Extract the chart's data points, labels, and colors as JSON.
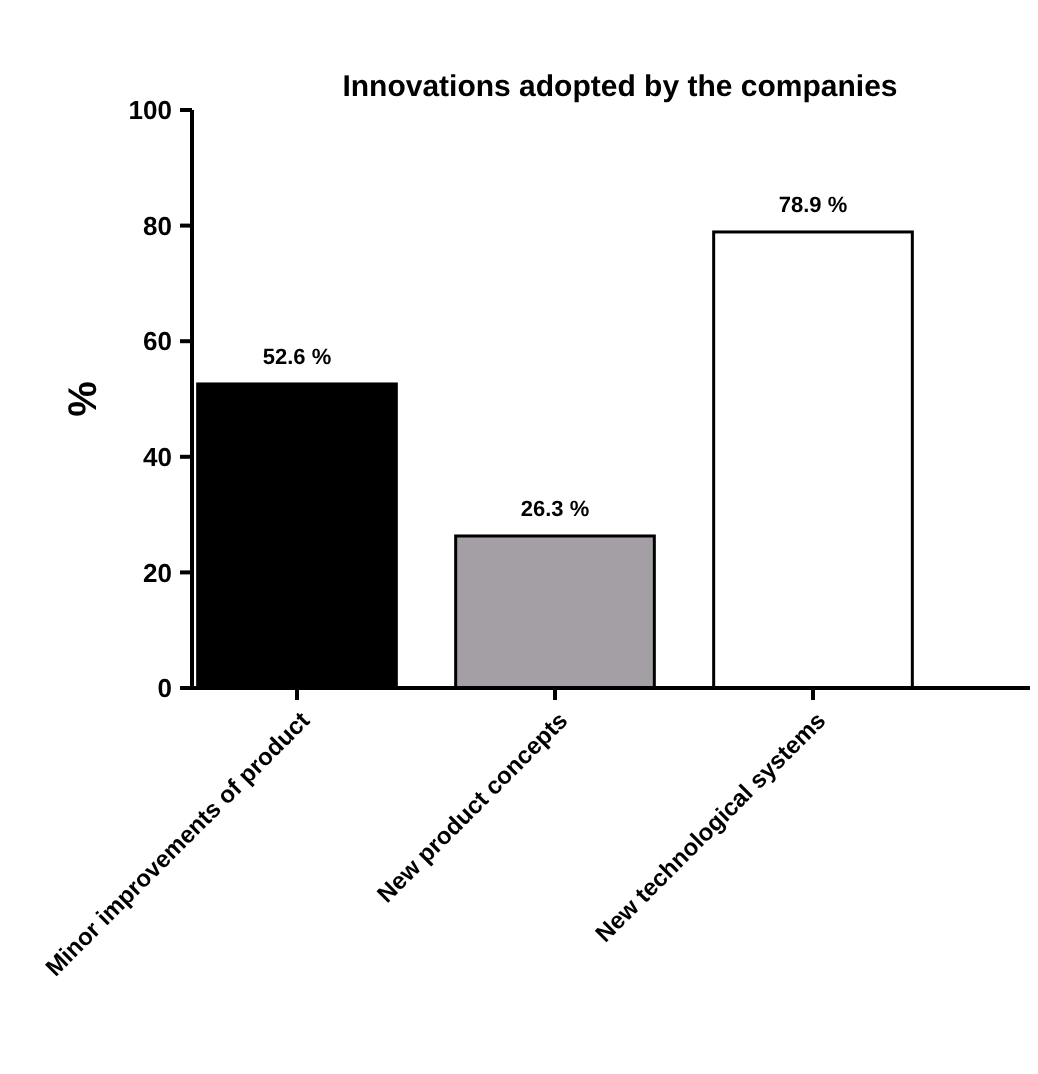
{
  "chart_data": {
    "type": "bar",
    "title": "Innovations adopted by the companies",
    "ylabel": "%",
    "categories": [
      "Minor improvements of product",
      "New product concepts",
      "New technological systems"
    ],
    "values": [
      52.6,
      26.3,
      78.9
    ],
    "colors": [
      "#000000",
      "#a39fa4",
      "#ffffff"
    ],
    "value_labels": [
      "52.6 %",
      "26.3 %",
      "78.9 %"
    ],
    "ylim": [
      0,
      100
    ],
    "yticks": [
      0,
      20,
      40,
      60,
      80,
      100
    ],
    "grid": false
  }
}
